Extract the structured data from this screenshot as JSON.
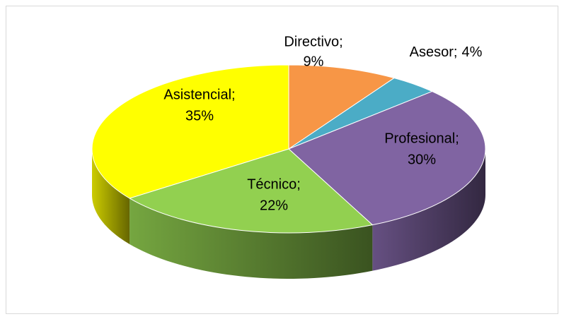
{
  "chart_data": {
    "type": "pie",
    "categories": [
      "Directivo;",
      "Asesor;",
      "Profesional;",
      "Técnico;",
      "Asistencial;"
    ],
    "values": [
      9,
      4,
      30,
      22,
      35
    ],
    "value_labels": [
      "9%",
      "4%",
      "30%",
      "22%",
      "35%"
    ],
    "colors": [
      "#f79646",
      "#4bacc6",
      "#8064a2",
      "#92d050",
      "#ffff00"
    ]
  }
}
